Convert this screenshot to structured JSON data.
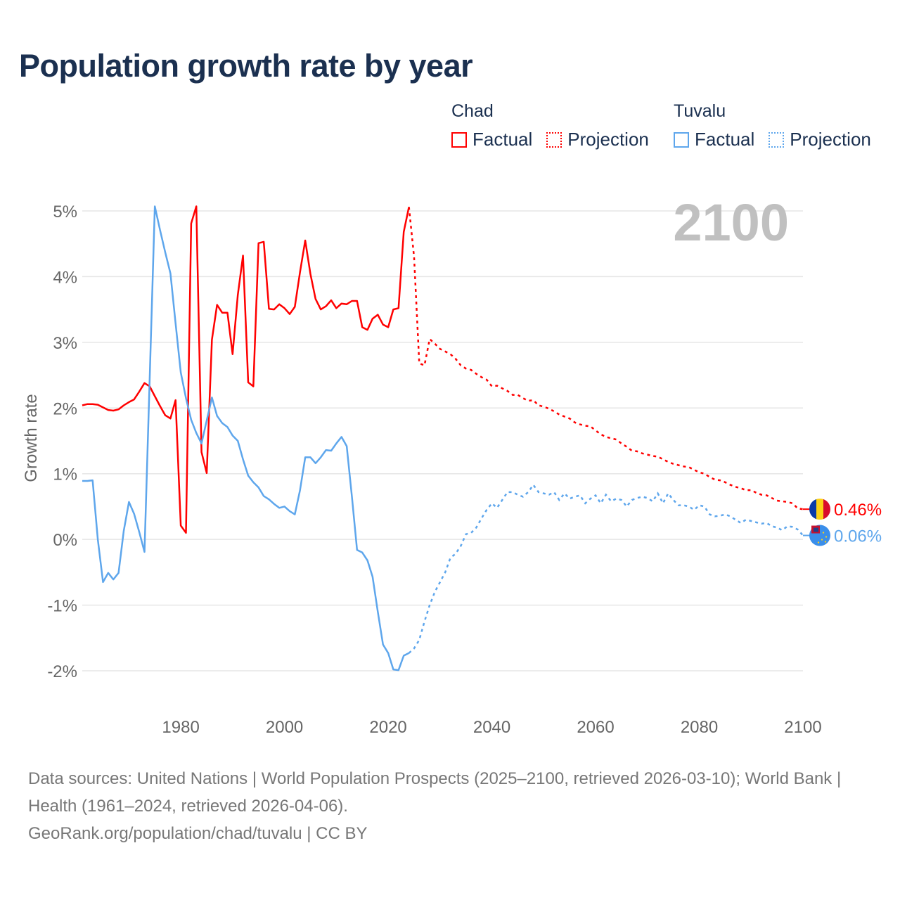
{
  "title": "Population growth rate by year",
  "legend": {
    "groups": [
      {
        "name": "Chad",
        "factual": "Factual",
        "projection": "Projection",
        "color": "#ff0000"
      },
      {
        "name": "Tuvalu",
        "factual": "Factual",
        "projection": "Projection",
        "color": "#5ea6ec"
      }
    ]
  },
  "footer": {
    "sources": "Data sources: United Nations | World Population Prospects (2025–2100, retrieved 2026-03-10); World Bank | Health (1961–2024, retrieved 2026-04-06).",
    "credit": "GeoRank.org/population/chad/tuvalu | CC BY"
  },
  "chart_data": {
    "type": "line",
    "title": "Population growth rate by year",
    "xlabel": "",
    "ylabel": "Growth rate",
    "year_label": "2100",
    "xlim": [
      1961,
      2100
    ],
    "ylim": [
      -2,
      5
    ],
    "x_ticks": [
      "1980",
      "2000",
      "2020",
      "2040",
      "2060",
      "2080",
      "2100"
    ],
    "x_tick_values": [
      1980,
      2000,
      2020,
      2040,
      2060,
      2080,
      2100
    ],
    "y_ticks": [
      "-2%",
      "-1%",
      "0%",
      "1%",
      "2%",
      "3%",
      "4%",
      "5%"
    ],
    "y_tick_values": [
      -2,
      -1,
      0,
      1,
      2,
      3,
      4,
      5
    ],
    "grid": true,
    "legend_position": "top-right",
    "series": [
      {
        "name": "Chad",
        "color": "#ff0000",
        "end_label": "0.46%",
        "factual_start": 1961,
        "factual": [
          2.04,
          2.06,
          2.06,
          2.05,
          2.01,
          1.97,
          1.96,
          1.98,
          2.04,
          2.09,
          2.13,
          2.25,
          2.38,
          2.33,
          2.18,
          2.03,
          1.89,
          1.84,
          2.12,
          0.21,
          0.1,
          4.81,
          5.07,
          1.33,
          1.01,
          3.04,
          3.57,
          3.45,
          3.45,
          2.82,
          3.72,
          4.32,
          2.39,
          2.33,
          4.51,
          4.53,
          3.51,
          3.5,
          3.58,
          3.52,
          3.43,
          3.54,
          4.07,
          4.55,
          4.04,
          3.66,
          3.5,
          3.55,
          3.64,
          3.52,
          3.59,
          3.58,
          3.63,
          3.63,
          3.23,
          3.19,
          3.36,
          3.42,
          3.27,
          3.23,
          3.5,
          3.52,
          4.68,
          5.06
        ],
        "projection_start": 2025,
        "projection": [
          4.3,
          2.68,
          2.65,
          3.05,
          2.98,
          2.9,
          2.86,
          2.82,
          2.75,
          2.65,
          2.6,
          2.58,
          2.52,
          2.47,
          2.43,
          2.33,
          2.34,
          2.3,
          2.26,
          2.2,
          2.2,
          2.15,
          2.11,
          2.12,
          2.04,
          2.02,
          1.99,
          1.95,
          1.9,
          1.87,
          1.84,
          1.78,
          1.75,
          1.73,
          1.72,
          1.66,
          1.6,
          1.56,
          1.54,
          1.52,
          1.46,
          1.41,
          1.35,
          1.34,
          1.31,
          1.29,
          1.27,
          1.26,
          1.22,
          1.18,
          1.15,
          1.13,
          1.11,
          1.1,
          1.06,
          1.02,
          1.0,
          0.95,
          0.91,
          0.9,
          0.87,
          0.83,
          0.8,
          0.78,
          0.75,
          0.75,
          0.71,
          0.68,
          0.67,
          0.63,
          0.59,
          0.58,
          0.57,
          0.55,
          0.47,
          0.46
        ]
      },
      {
        "name": "Tuvalu",
        "color": "#5ea6ec",
        "end_label": "0.06%",
        "factual_start": 1961,
        "factual": [
          0.89,
          0.89,
          0.9,
          0.0,
          -0.65,
          -0.51,
          -0.61,
          -0.51,
          0.13,
          0.57,
          0.39,
          0.11,
          -0.19,
          2.45,
          5.07,
          4.71,
          4.37,
          4.05,
          3.29,
          2.54,
          2.15,
          1.82,
          1.62,
          1.46,
          1.81,
          2.16,
          1.88,
          1.77,
          1.71,
          1.58,
          1.5,
          1.22,
          0.97,
          0.87,
          0.79,
          0.66,
          0.61,
          0.54,
          0.48,
          0.5,
          0.43,
          0.38,
          0.75,
          1.25,
          1.25,
          1.16,
          1.25,
          1.36,
          1.35,
          1.46,
          1.56,
          1.42,
          0.65,
          -0.16,
          -0.2,
          -0.32,
          -0.57,
          -1.1,
          -1.6,
          -1.73,
          -1.98,
          -1.99,
          -1.77,
          -1.73
        ],
        "projection_start": 2025,
        "projection": [
          -1.66,
          -1.53,
          -1.25,
          -1.0,
          -0.8,
          -0.65,
          -0.5,
          -0.28,
          -0.22,
          -0.1,
          0.08,
          0.1,
          0.18,
          0.32,
          0.45,
          0.55,
          0.48,
          0.6,
          0.72,
          0.72,
          0.68,
          0.65,
          0.72,
          0.83,
          0.72,
          0.7,
          0.68,
          0.72,
          0.6,
          0.7,
          0.62,
          0.65,
          0.67,
          0.55,
          0.62,
          0.67,
          0.55,
          0.68,
          0.58,
          0.62,
          0.6,
          0.5,
          0.6,
          0.63,
          0.65,
          0.63,
          0.58,
          0.7,
          0.55,
          0.7,
          0.6,
          0.52,
          0.52,
          0.5,
          0.45,
          0.52,
          0.5,
          0.38,
          0.35,
          0.36,
          0.38,
          0.35,
          0.3,
          0.25,
          0.3,
          0.28,
          0.26,
          0.24,
          0.25,
          0.2,
          0.18,
          0.14,
          0.2,
          0.19,
          0.15,
          0.06
        ]
      }
    ]
  }
}
